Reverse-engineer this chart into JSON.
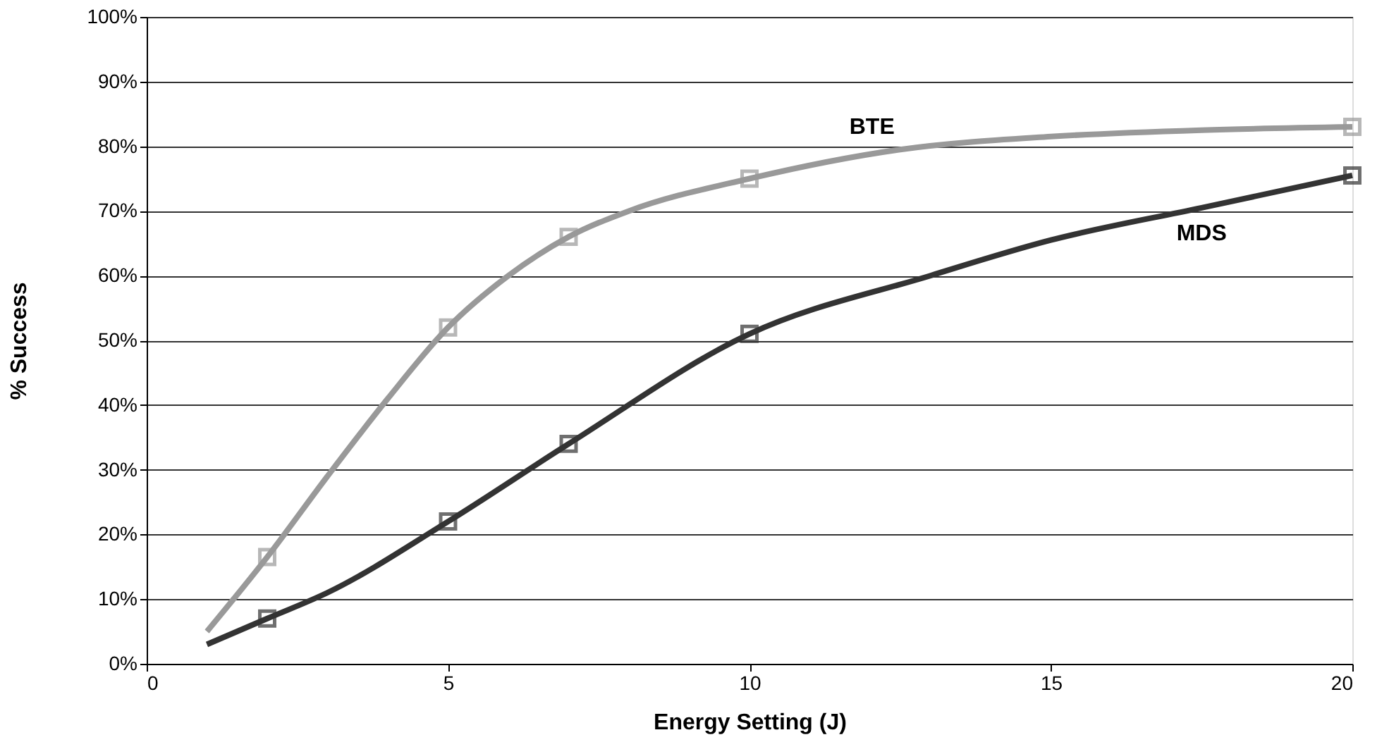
{
  "chart_data": {
    "type": "line",
    "xlabel": "Energy Setting (J)",
    "ylabel": "% Success",
    "xlim": [
      0,
      20
    ],
    "xticks": [
      0,
      5,
      10,
      15,
      20
    ],
    "ylim": [
      0,
      100
    ],
    "yticks": [
      {
        "value": 0,
        "label": "0%"
      },
      {
        "value": 10,
        "label": "10%"
      },
      {
        "value": 20,
        "label": "20%"
      },
      {
        "value": 30,
        "label": "30%"
      },
      {
        "value": 40,
        "label": "40%"
      },
      {
        "value": 50,
        "label": "50%"
      },
      {
        "value": 60,
        "label": "60%"
      },
      {
        "value": 70,
        "label": "70%"
      },
      {
        "value": 80,
        "label": "80%"
      },
      {
        "value": 90,
        "label": "90%"
      },
      {
        "value": 100,
        "label": "100%"
      }
    ],
    "grid": "y",
    "legend": false,
    "line_style": "solid",
    "series": [
      {
        "name": "BTE",
        "type": "line",
        "color": "#999999",
        "x": [
          1,
          2,
          3,
          4,
          5,
          6,
          7,
          8,
          10,
          12.5,
          15,
          17.5,
          20
        ],
        "values": [
          5,
          16.5,
          29,
          41,
          52,
          60,
          66,
          70,
          75,
          79.5,
          81.5,
          82.5,
          83
        ]
      },
      {
        "name": "MDS",
        "type": "line",
        "color": "#333333",
        "x": [
          1,
          2,
          3,
          5,
          7,
          10,
          13,
          15,
          17.5,
          20
        ],
        "values": [
          3,
          7,
          11,
          22,
          34,
          51,
          60,
          65.5,
          70.5,
          75.5
        ]
      },
      {
        "type": "scatter",
        "marker": "square",
        "color": "#999999",
        "x": [
          2,
          5,
          7,
          10,
          20
        ],
        "values": [
          16.5,
          52,
          66,
          75,
          83
        ]
      },
      {
        "type": "scatter",
        "marker": "square",
        "color": "#333333",
        "x": [
          2,
          5,
          7,
          10,
          20
        ],
        "values": [
          7,
          22,
          34,
          51,
          75.5
        ]
      }
    ]
  }
}
